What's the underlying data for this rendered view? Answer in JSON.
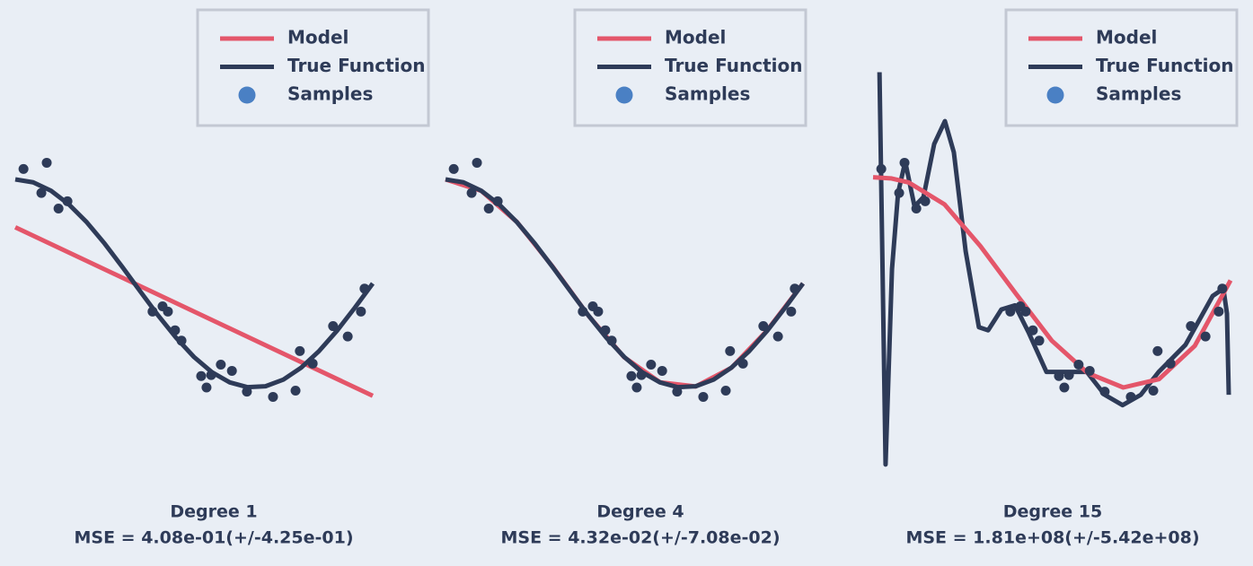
{
  "chart_data": [
    {
      "type": "line",
      "title": "Degree 1",
      "subtitle": "MSE = 4.08e-01(+/-4.25e-01)",
      "xlim": [
        0,
        1
      ],
      "ylim": [
        -2,
        2
      ],
      "legend": "upper right",
      "series": [
        {
          "name": "Model",
          "color": "#e4566a",
          "x": [
            0,
            1
          ],
          "values": [
            0.54,
            -1.08
          ]
        },
        {
          "name": "True Function",
          "color": "#2e3b58",
          "x": [
            0,
            0.05,
            0.1,
            0.15,
            0.2,
            0.25,
            0.3,
            0.35,
            0.4,
            0.45,
            0.5,
            0.55,
            0.6,
            0.65,
            0.7,
            0.75,
            0.8,
            0.85,
            0.9,
            0.95,
            1
          ],
          "values": [
            1,
            0.972,
            0.891,
            0.76,
            0.588,
            0.383,
            0.156,
            -0.078,
            -0.309,
            -0.522,
            -0.707,
            -0.853,
            -0.951,
            -0.997,
            -0.988,
            -0.924,
            -0.809,
            -0.649,
            -0.454,
            -0.233,
            0
          ]
        },
        {
          "name": "Samples",
          "type": "scatter",
          "color": "#2e3b58",
          "legend_color": "#4a80c4",
          "x": [
            0.023,
            0.088,
            0.073,
            0.121,
            0.146,
            0.384,
            0.412,
            0.427,
            0.447,
            0.465,
            0.52,
            0.535,
            0.548,
            0.575,
            0.606,
            0.648,
            0.721,
            0.784,
            0.796,
            0.832,
            0.889,
            0.93,
            0.967,
            0.977
          ],
          "values": [
            1.1,
            1.16,
            0.87,
            0.72,
            0.79,
            -0.27,
            -0.22,
            -0.27,
            -0.45,
            -0.55,
            -0.89,
            -1.0,
            -0.88,
            -0.78,
            -0.84,
            -1.04,
            -1.09,
            -1.03,
            -0.65,
            -0.77,
            -0.41,
            -0.51,
            -0.27,
            -0.05
          ]
        }
      ]
    },
    {
      "type": "line",
      "title": "Degree 4",
      "subtitle": "MSE = 4.32e-02(+/-7.08e-02)",
      "xlim": [
        0,
        1
      ],
      "ylim": [
        -2,
        2
      ],
      "legend": "upper right",
      "series": [
        {
          "name": "Model",
          "color": "#e4566a",
          "x": [
            0,
            0.1,
            0.2,
            0.3,
            0.4,
            0.5,
            0.6,
            0.7,
            0.8,
            0.9,
            1
          ],
          "values": [
            1,
            0.89,
            0.59,
            0.16,
            -0.31,
            -0.71,
            -0.95,
            -0.99,
            -0.81,
            -0.45,
            0
          ]
        },
        {
          "name": "True Function",
          "color": "#2e3b58",
          "x": [
            0,
            0.05,
            0.1,
            0.15,
            0.2,
            0.25,
            0.3,
            0.35,
            0.4,
            0.45,
            0.5,
            0.55,
            0.6,
            0.65,
            0.7,
            0.75,
            0.8,
            0.85,
            0.9,
            0.95,
            1
          ],
          "values": [
            1,
            0.972,
            0.891,
            0.76,
            0.588,
            0.383,
            0.156,
            -0.078,
            -0.309,
            -0.522,
            -0.707,
            -0.853,
            -0.951,
            -0.997,
            -0.988,
            -0.924,
            -0.809,
            -0.649,
            -0.454,
            -0.233,
            0
          ]
        },
        {
          "name": "Samples",
          "type": "scatter",
          "color": "#2e3b58",
          "legend_color": "#4a80c4",
          "x": [
            0.023,
            0.088,
            0.073,
            0.121,
            0.146,
            0.384,
            0.412,
            0.427,
            0.447,
            0.465,
            0.52,
            0.535,
            0.548,
            0.575,
            0.606,
            0.648,
            0.721,
            0.784,
            0.796,
            0.832,
            0.889,
            0.93,
            0.967,
            0.977
          ],
          "values": [
            1.1,
            1.16,
            0.87,
            0.72,
            0.79,
            -0.27,
            -0.22,
            -0.27,
            -0.45,
            -0.55,
            -0.89,
            -1.0,
            -0.88,
            -0.78,
            -0.84,
            -1.04,
            -1.09,
            -1.03,
            -0.65,
            -0.77,
            -0.41,
            -0.51,
            -0.27,
            -0.05
          ]
        }
      ]
    },
    {
      "type": "line",
      "title": "Degree 15",
      "subtitle": "MSE = 1.81e+08(+/-5.42e+08)",
      "xlim": [
        0,
        1
      ],
      "ylim": [
        -2,
        2
      ],
      "legend": "upper right",
      "series": [
        {
          "name": "True Function",
          "color": "#2e3b58",
          "x": [
            0.018,
            0.035,
            0.053,
            0.07,
            0.09,
            0.116,
            0.141,
            0.171,
            0.201,
            0.226,
            0.259,
            0.296,
            0.322,
            0.359,
            0.397,
            0.435,
            0.485,
            0.535,
            0.598,
            0.648,
            0.698,
            0.749,
            0.799,
            0.874,
            0.95,
            0.98,
            0.99,
            0.995
          ],
          "values": [
            2.03,
            -1.74,
            0.14,
            0.87,
            1.17,
            0.74,
            0.83,
            1.34,
            1.56,
            1.26,
            0.31,
            -0.42,
            -0.45,
            -0.25,
            -0.21,
            -0.47,
            -0.85,
            -0.85,
            -0.85,
            -1.07,
            -1.17,
            -1.07,
            -0.85,
            -0.59,
            -0.12,
            -0.05,
            -0.29,
            -1.07
          ]
        },
        {
          "name": "Model",
          "color": "#e4566a",
          "x": [
            0,
            0.05,
            0.1,
            0.2,
            0.3,
            0.4,
            0.5,
            0.6,
            0.7,
            0.8,
            0.9,
            1
          ],
          "values": [
            1.02,
            1.01,
            0.97,
            0.76,
            0.36,
            -0.1,
            -0.55,
            -0.86,
            -1.0,
            -0.92,
            -0.6,
            0.03
          ]
        },
        {
          "name": "Samples",
          "type": "scatter",
          "color": "#2e3b58",
          "legend_color": "#4a80c4",
          "x": [
            0.023,
            0.088,
            0.073,
            0.121,
            0.146,
            0.384,
            0.412,
            0.427,
            0.447,
            0.465,
            0.52,
            0.535,
            0.548,
            0.575,
            0.606,
            0.648,
            0.721,
            0.784,
            0.796,
            0.832,
            0.889,
            0.93,
            0.967,
            0.977
          ],
          "values": [
            1.1,
            1.16,
            0.87,
            0.72,
            0.79,
            -0.27,
            -0.22,
            -0.27,
            -0.45,
            -0.55,
            -0.89,
            -1.0,
            -0.88,
            -0.78,
            -0.84,
            -1.04,
            -1.09,
            -1.03,
            -0.65,
            -0.77,
            -0.41,
            -0.51,
            -0.27,
            -0.05
          ]
        }
      ]
    }
  ]
}
